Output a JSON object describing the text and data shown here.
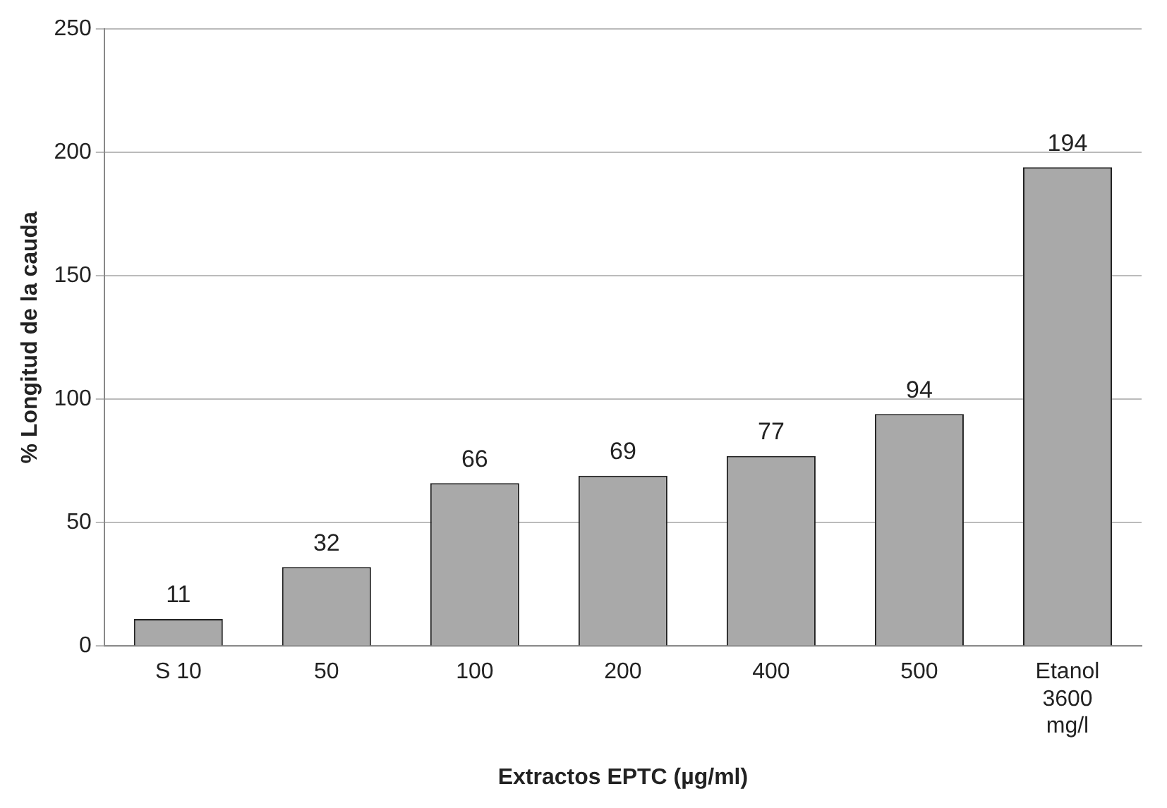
{
  "chart_data": {
    "type": "bar",
    "xlabel": "Extractos EPTC (µg/ml)",
    "ylabel": "% Longitud de la cauda",
    "categories": [
      "S 10",
      "50",
      "100",
      "200",
      "400",
      "500",
      "Etanol 3600 mg/l"
    ],
    "values": [
      11,
      32,
      66,
      69,
      77,
      94,
      194
    ],
    "color": "#a9a9a9",
    "ylim": [
      0,
      250
    ],
    "yticks": [
      0,
      50,
      100,
      150,
      200,
      250
    ],
    "grid": "y",
    "data_labels": true
  }
}
